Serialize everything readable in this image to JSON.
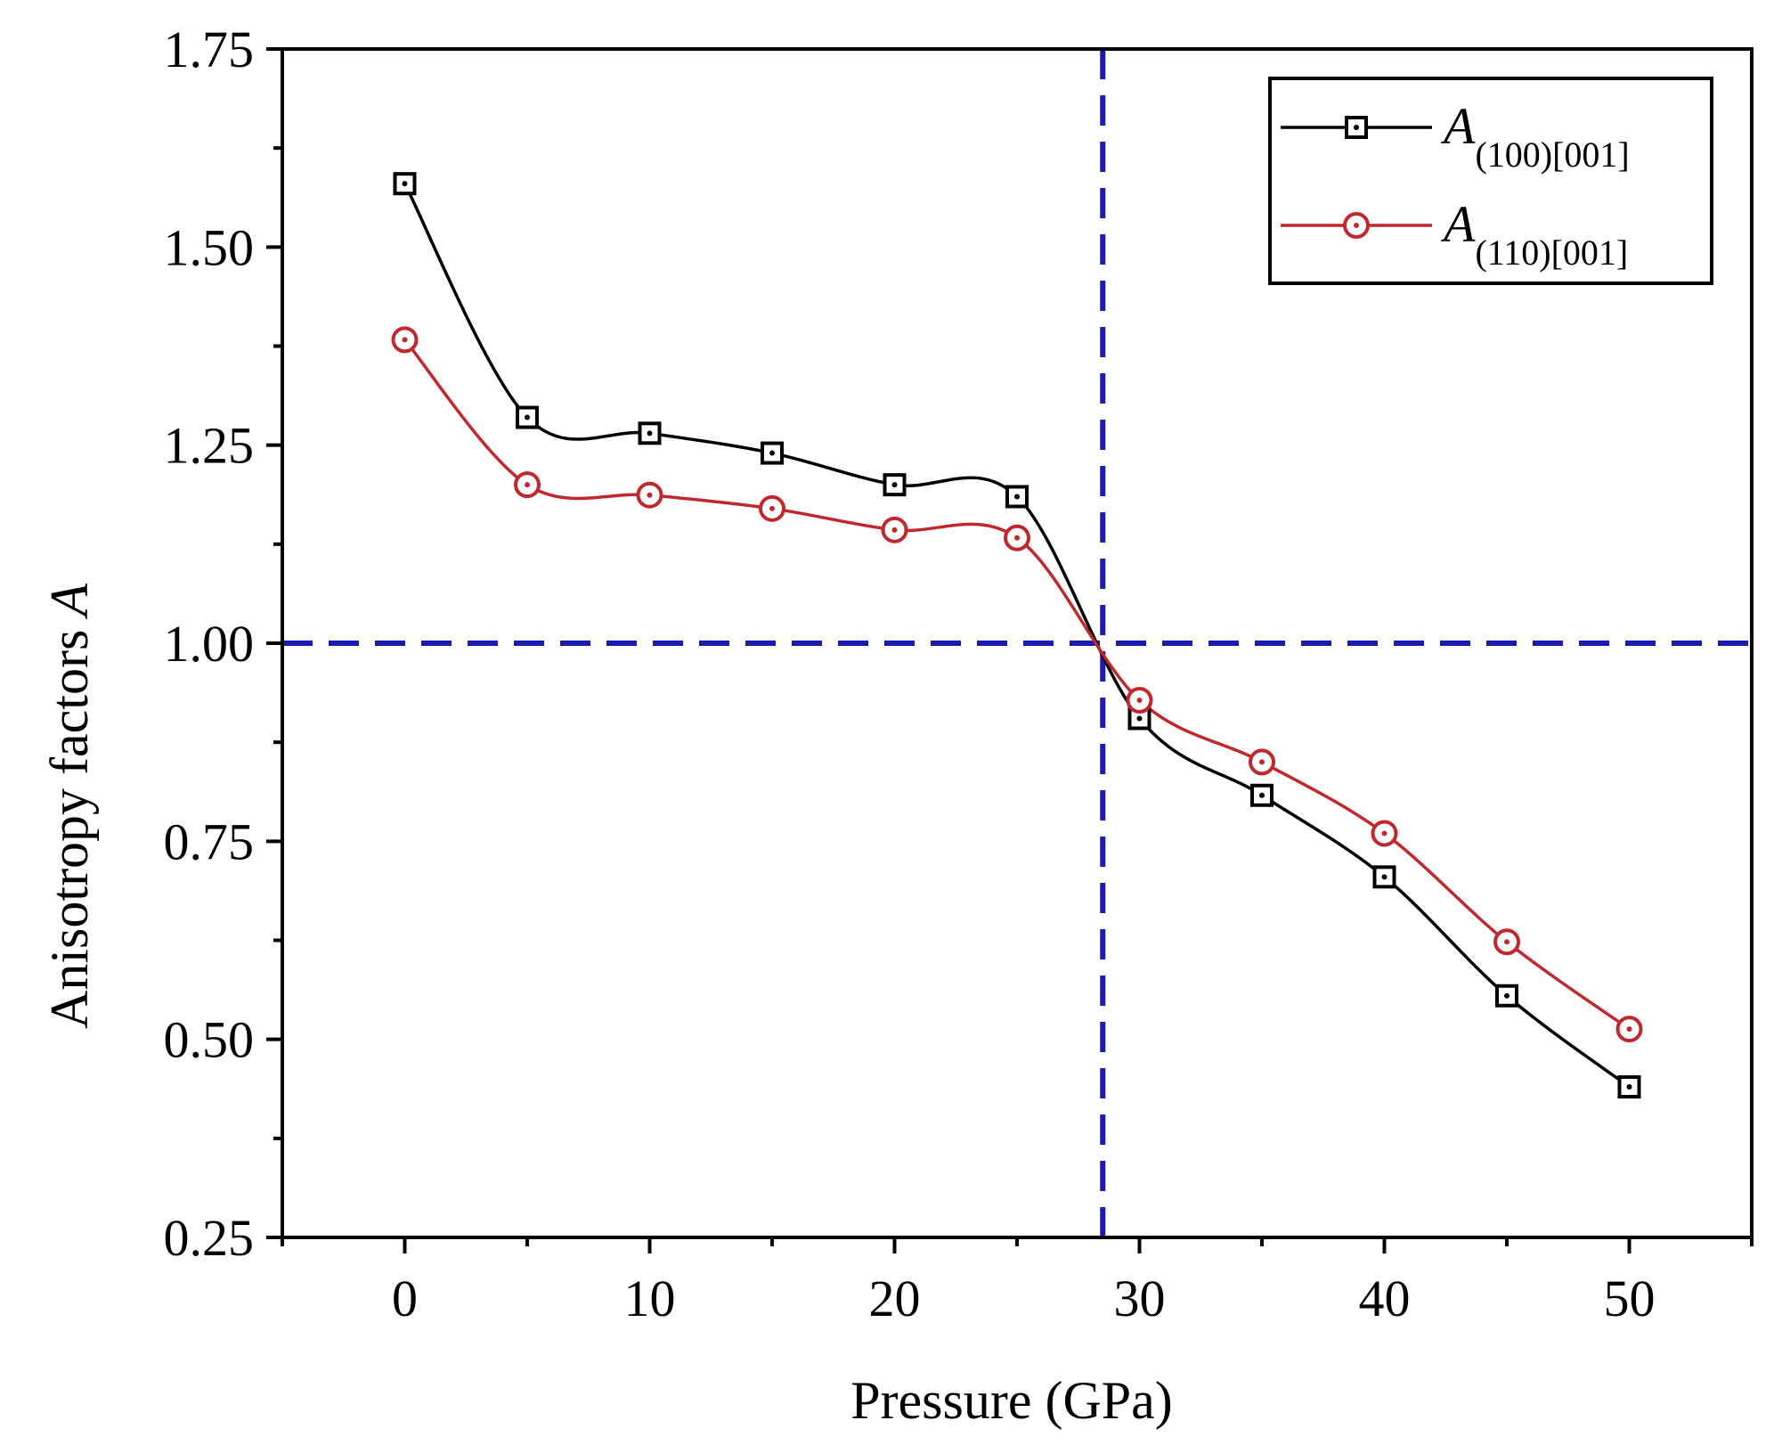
{
  "chart_data": {
    "type": "line",
    "xlabel": "Pressure (GPa)",
    "ylabel_prefix": "Anisotropy factors ",
    "ylabel_symbol": "A",
    "xlim": [
      -5,
      55
    ],
    "ylim": [
      0.25,
      1.75
    ],
    "xticks": [
      0,
      10,
      20,
      30,
      40,
      50
    ],
    "xtick_labels": [
      "0",
      "10",
      "20",
      "30",
      "40",
      "50"
    ],
    "yticks": [
      0.25,
      0.5,
      0.75,
      1.0,
      1.25,
      1.5,
      1.75
    ],
    "ytick_labels": [
      "0.25",
      "0.50",
      "0.75",
      "1.00",
      "1.25",
      "1.50",
      "1.75"
    ],
    "reference_lines": {
      "horizontal_y": 1.0,
      "vertical_x": 28.5,
      "color": "#1a1ab0",
      "style": "dashed"
    },
    "legend_position": "top-right",
    "x": [
      0,
      5,
      10,
      15,
      20,
      25,
      30,
      35,
      40,
      45,
      50
    ],
    "series": [
      {
        "name": "A(100)[001]",
        "symbol": "A",
        "subscript": "(100)[001]",
        "marker": "square",
        "color": "#000000",
        "values": [
          1.58,
          1.285,
          1.265,
          1.24,
          1.2,
          1.185,
          0.905,
          0.808,
          0.705,
          0.555,
          0.44
        ]
      },
      {
        "name": "A(110)[001]",
        "symbol": "A",
        "subscript": "(110)[001]",
        "marker": "circle",
        "color": "#c0282d",
        "values": [
          1.383,
          1.2,
          1.187,
          1.17,
          1.143,
          1.133,
          0.928,
          0.85,
          0.76,
          0.623,
          0.513
        ]
      }
    ]
  }
}
